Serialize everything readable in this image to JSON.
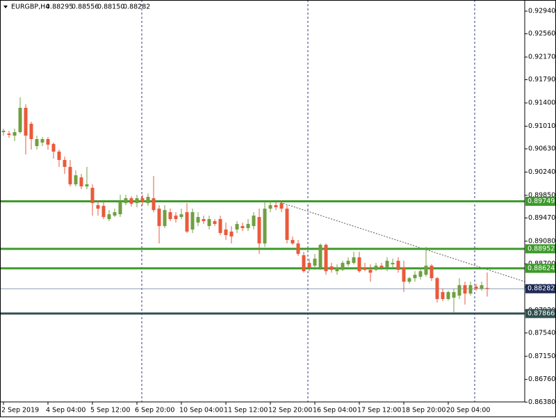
{
  "chart_data": {
    "type": "candlestick",
    "title": "EURGBP,H4",
    "header": [
      "0.88295",
      "0.88556",
      "0.88150",
      "0.88282"
    ],
    "bull_color": "#6f9f42",
    "bear_color": "#ea5a3b",
    "ylim": [
      0.86383,
      0.93127
    ],
    "yticks": [
      {
        "value": 0.9294,
        "label": "0.92940"
      },
      {
        "value": 0.9256,
        "label": "0.92560"
      },
      {
        "value": 0.9217,
        "label": "0.92170"
      },
      {
        "value": 0.9179,
        "label": "0.91790"
      },
      {
        "value": 0.914,
        "label": "0.91400"
      },
      {
        "value": 0.9101,
        "label": "0.91010"
      },
      {
        "value": 0.9063,
        "label": "0.90630"
      },
      {
        "value": 0.9024,
        "label": "0.90240"
      },
      {
        "value": 0.8985,
        "label": "0.89850"
      },
      {
        "value": 0.8947,
        "label": "0.89470"
      },
      {
        "value": 0.8908,
        "label": "0.89080"
      },
      {
        "value": 0.887,
        "label": "0.88700"
      },
      {
        "value": 0.8831,
        "label": "0.88310"
      },
      {
        "value": 0.8792,
        "label": "0.87920"
      },
      {
        "value": 0.8754,
        "label": "0.87540"
      },
      {
        "value": 0.8715,
        "label": "0.87150"
      },
      {
        "value": 0.8676,
        "label": "0.86760"
      },
      {
        "value": 0.8638,
        "label": "0.86380"
      }
    ],
    "levels": [
      {
        "value": 0.89749,
        "color": "#3c9a2a"
      },
      {
        "value": 0.88952,
        "color": "#3c9a2a"
      },
      {
        "value": 0.88624,
        "color": "#3c9a2a"
      },
      {
        "value": 0.87866,
        "color": "#2f4f4f"
      }
    ],
    "categories": [
      "2 Sep 2019",
      null,
      null,
      null,
      null,
      null,
      null,
      null,
      "4 Sep 04:00",
      null,
      null,
      null,
      null,
      null,
      null,
      null,
      "5 Sep 12:00",
      null,
      null,
      null,
      null,
      null,
      null,
      null,
      "6 Sep 20:00",
      null,
      null,
      null,
      null,
      null,
      null,
      null,
      "10 Sep 04:00",
      null,
      null,
      null,
      null,
      null,
      null,
      null,
      "11 Sep 12:00",
      null,
      null,
      null,
      null,
      null,
      null,
      null,
      "12 Sep 20:00",
      null,
      null,
      null,
      null,
      null,
      null,
      null,
      "16 Sep 04:00",
      null,
      null,
      null,
      null,
      null,
      null,
      null,
      "17 Sep 12:00",
      null,
      null,
      null,
      null,
      null,
      null,
      null,
      "18 Sep 20:00",
      null,
      null,
      null,
      null,
      null,
      null,
      null,
      "20 Sep 04:00",
      null,
      null,
      null,
      null,
      null,
      null,
      null
    ],
    "ohlc": [
      [
        0.9091,
        0.90968,
        0.90851,
        0.90933
      ],
      [
        0.90886,
        0.90933,
        0.90816,
        0.90863
      ],
      [
        0.90851,
        0.90968,
        0.90758,
        0.9091
      ],
      [
        0.9091,
        0.91493,
        0.90886,
        0.91318
      ],
      [
        0.91318,
        0.91377,
        0.90536,
        0.90851
      ],
      [
        0.9105,
        0.91085,
        0.90618,
        0.90793
      ],
      [
        0.90676,
        0.90851,
        0.90618,
        0.90793
      ],
      [
        0.90735,
        0.90828,
        0.90676,
        0.90793
      ],
      [
        0.90793,
        0.90828,
        0.90618,
        0.907
      ],
      [
        0.90711,
        0.90735,
        0.90466,
        0.90583
      ],
      [
        0.90583,
        0.90618,
        0.90326,
        0.90443
      ],
      [
        0.90443,
        0.90501,
        0.9021,
        0.90326
      ],
      [
        0.90326,
        0.90443,
        0.89999,
        0.90034
      ],
      [
        0.90034,
        0.90268,
        0.89999,
        0.90186
      ],
      [
        0.90151,
        0.9021,
        0.89952,
        0.89999
      ],
      [
        0.89999,
        0.90326,
        0.89952,
        0.90034
      ],
      [
        0.89976,
        0.90034,
        0.89509,
        0.89719
      ],
      [
        0.89684,
        0.89766,
        0.89509,
        0.89626
      ],
      [
        0.89672,
        0.89742,
        0.89451,
        0.89486
      ],
      [
        0.89451,
        0.89602,
        0.89416,
        0.89532
      ],
      [
        0.89509,
        0.89626,
        0.89486,
        0.89567
      ],
      [
        0.89532,
        0.89859,
        0.89486,
        0.89742
      ],
      [
        0.89719,
        0.89859,
        0.89684,
        0.89801
      ],
      [
        0.89801,
        0.89836,
        0.8966,
        0.89707
      ],
      [
        0.89719,
        0.89859,
        0.89649,
        0.89801
      ],
      [
        0.89801,
        0.89859,
        0.89684,
        0.89742
      ],
      [
        0.89719,
        0.89882,
        0.89672,
        0.89824
      ],
      [
        0.89801,
        0.90174,
        0.89567,
        0.89602
      ],
      [
        0.89626,
        0.89684,
        0.89042,
        0.89334
      ],
      [
        0.89334,
        0.89684,
        0.89299,
        0.89602
      ],
      [
        0.89567,
        0.89626,
        0.89416,
        0.89451
      ],
      [
        0.89509,
        0.89567,
        0.89392,
        0.89451
      ],
      [
        0.89486,
        0.89626,
        0.89451,
        0.89532
      ],
      [
        0.89567,
        0.89719,
        0.89217,
        0.89241
      ],
      [
        0.89276,
        0.89626,
        0.89217,
        0.89567
      ],
      [
        0.89392,
        0.89567,
        0.89334,
        0.89486
      ],
      [
        0.89451,
        0.89509,
        0.89369,
        0.89416
      ],
      [
        0.89334,
        0.89509,
        0.89276,
        0.89451
      ],
      [
        0.89416,
        0.89451,
        0.89334,
        0.89369
      ],
      [
        0.89451,
        0.89509,
        0.89182,
        0.89217
      ],
      [
        0.89276,
        0.89392,
        0.89101,
        0.89182
      ],
      [
        0.89241,
        0.89334,
        0.89042,
        0.89159
      ],
      [
        0.89276,
        0.89416,
        0.89217,
        0.89369
      ],
      [
        0.89334,
        0.89392,
        0.89252,
        0.89299
      ],
      [
        0.89299,
        0.89451,
        0.89252,
        0.89369
      ],
      [
        0.89334,
        0.89567,
        0.89276,
        0.89509
      ],
      [
        0.89486,
        0.89626,
        0.88867,
        0.89042
      ],
      [
        0.89042,
        0.89742,
        0.88984,
        0.89626
      ],
      [
        0.89626,
        0.89766,
        0.89567,
        0.89684
      ],
      [
        0.89684,
        0.89742,
        0.89602,
        0.89649
      ],
      [
        0.89719,
        0.89766,
        0.89567,
        0.89626
      ],
      [
        0.89626,
        0.89684,
        0.89042,
        0.89101
      ],
      [
        0.89101,
        0.89159,
        0.89019,
        0.89042
      ],
      [
        0.89042,
        0.89101,
        0.88832,
        0.88867
      ],
      [
        0.88844,
        0.88902,
        0.88552,
        0.88576
      ],
      [
        0.88716,
        0.88786,
        0.88576,
        0.88634
      ],
      [
        0.88669,
        0.88867,
        0.88599,
        0.88786
      ],
      [
        0.88634,
        0.89042,
        0.88599,
        0.89019
      ],
      [
        0.89019,
        0.89042,
        0.88517,
        0.88576
      ],
      [
        0.88657,
        0.88716,
        0.88552,
        0.88599
      ],
      [
        0.88576,
        0.88692,
        0.88517,
        0.88634
      ],
      [
        0.88599,
        0.88751,
        0.88576,
        0.88716
      ],
      [
        0.88692,
        0.88809,
        0.88657,
        0.88751
      ],
      [
        0.88716,
        0.88902,
        0.88692,
        0.88809
      ],
      [
        0.88809,
        0.88902,
        0.88552,
        0.88576
      ],
      [
        0.88634,
        0.88716,
        0.88576,
        0.88599
      ],
      [
        0.88599,
        0.88692,
        0.884,
        0.88552
      ],
      [
        0.88599,
        0.88716,
        0.88576,
        0.88669
      ],
      [
        0.88669,
        0.88716,
        0.88599,
        0.88634
      ],
      [
        0.88634,
        0.88809,
        0.88576,
        0.88751
      ],
      [
        0.88692,
        0.88786,
        0.88634,
        0.88716
      ],
      [
        0.88751,
        0.88809,
        0.88552,
        0.88599
      ],
      [
        0.88634,
        0.88751,
        0.88226,
        0.884
      ],
      [
        0.884,
        0.88482,
        0.88365,
        0.88459
      ],
      [
        0.88459,
        0.88576,
        0.884,
        0.88517
      ],
      [
        0.88482,
        0.88634,
        0.88436,
        0.88576
      ],
      [
        0.88517,
        0.88984,
        0.88482,
        0.88669
      ],
      [
        0.88669,
        0.88692,
        0.88412,
        0.88459
      ],
      [
        0.88459,
        0.88482,
        0.88051,
        0.88109
      ],
      [
        0.88226,
        0.88284,
        0.88074,
        0.88109
      ],
      [
        0.88109,
        0.88249,
        0.88086,
        0.88226
      ],
      [
        0.88132,
        0.88284,
        0.87876,
        0.88226
      ],
      [
        0.88167,
        0.88459,
        0.88109,
        0.88342
      ],
      [
        0.88342,
        0.884,
        0.88016,
        0.88202
      ],
      [
        0.88202,
        0.884,
        0.88167,
        0.88342
      ],
      [
        0.88319,
        0.88365,
        0.88249,
        0.88284
      ],
      [
        0.88284,
        0.884,
        0.88249,
        0.88342
      ],
      [
        0.88295,
        0.88556,
        0.8815,
        0.88282
      ]
    ]
  }
}
